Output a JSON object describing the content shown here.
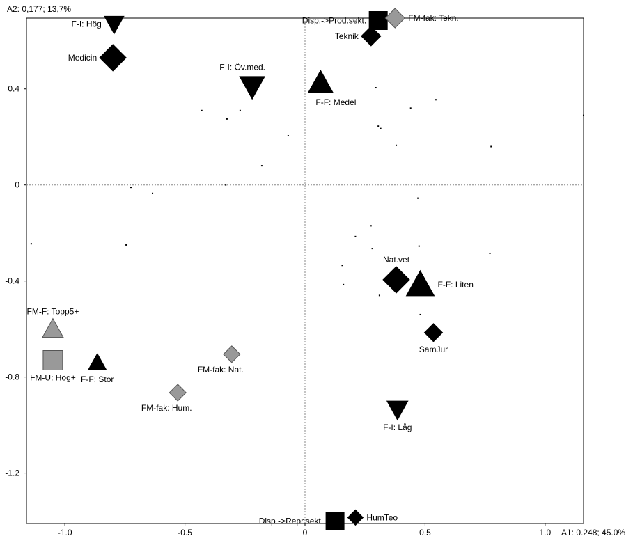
{
  "chart_data": {
    "type": "scatter",
    "y_axis_title": "A2: 0,177; 13,7%",
    "x_axis_title": "A1: 0.248; 45.0%",
    "xlim": [
      -1.16,
      1.16
    ],
    "ylim": [
      -1.41,
      0.695
    ],
    "x_ticks": [
      {
        "value": -1.0,
        "label": "-1.0"
      },
      {
        "value": -0.5,
        "label": "-0.5"
      },
      {
        "value": 0.0,
        "label": "0"
      },
      {
        "value": 0.5,
        "label": "0.5"
      },
      {
        "value": 1.0,
        "label": "1.0"
      }
    ],
    "y_ticks": [
      {
        "value": 0.4,
        "label": "0.4"
      },
      {
        "value": 0.0,
        "label": "0"
      },
      {
        "value": -0.4,
        "label": "-0.4"
      },
      {
        "value": -0.8,
        "label": "-0.8"
      },
      {
        "value": -1.2,
        "label": "-1.2"
      }
    ],
    "colors": {
      "black": "#000000",
      "gray": "#999999",
      "gray_stroke": "#555555",
      "zero_line": "#888888"
    },
    "points": [
      {
        "x": -0.795,
        "y": 0.67,
        "shape": "triangle-down",
        "color": "black",
        "size": 28,
        "label": "F-I: Hög",
        "label_pos": "left"
      },
      {
        "x": -0.8,
        "y": 0.53,
        "shape": "diamond",
        "color": "black",
        "size": 38,
        "label": "Medicin",
        "label_pos": "left"
      },
      {
        "x": -0.22,
        "y": 0.41,
        "shape": "triangle-down",
        "color": "black",
        "size": 36,
        "label": "F-I: Öv.med.",
        "label_pos": "above-left"
      },
      {
        "x": 0.065,
        "y": 0.425,
        "shape": "triangle-up",
        "color": "black",
        "size": 36,
        "label": "F-F: Medel",
        "label_pos": "below-right"
      },
      {
        "x": 0.305,
        "y": 0.685,
        "shape": "square",
        "color": "black",
        "size": 26,
        "label": "Disp.->Prod.sekt.",
        "label_pos": "left"
      },
      {
        "x": 0.375,
        "y": 0.695,
        "shape": "diamond",
        "color": "gray",
        "size": 28,
        "label": "FM-fak: Tekn.",
        "label_pos": "right"
      },
      {
        "x": 0.275,
        "y": 0.62,
        "shape": "diamond",
        "color": "black",
        "size": 28,
        "label": "Teknik",
        "label_pos": "left"
      },
      {
        "x": 0.38,
        "y": -0.395,
        "shape": "diamond",
        "color": "black",
        "size": 38,
        "label": "Nat.vet",
        "label_pos": "above"
      },
      {
        "x": 0.48,
        "y": -0.415,
        "shape": "triangle-up",
        "color": "black",
        "size": 40,
        "label": "F-F: Liten",
        "label_pos": "right"
      },
      {
        "x": 0.535,
        "y": -0.615,
        "shape": "diamond",
        "color": "black",
        "size": 26,
        "label": "SamJur",
        "label_pos": "below"
      },
      {
        "x": 0.385,
        "y": -0.935,
        "shape": "triangle-down",
        "color": "black",
        "size": 30,
        "label": "F-I: Låg",
        "label_pos": "below"
      },
      {
        "x": -1.05,
        "y": -0.6,
        "shape": "triangle-up",
        "color": "gray",
        "size": 30,
        "label": "FM-F: Topp5+",
        "label_pos": "above"
      },
      {
        "x": -1.05,
        "y": -0.73,
        "shape": "square",
        "color": "gray",
        "size": 28,
        "label": "FM-U: Hög+",
        "label_pos": "below"
      },
      {
        "x": -0.865,
        "y": -0.74,
        "shape": "triangle-up",
        "color": "black",
        "size": 26,
        "label": "F-F: Stor",
        "label_pos": "below"
      },
      {
        "x": -0.305,
        "y": -0.705,
        "shape": "diamond",
        "color": "gray",
        "size": 24,
        "label": "FM-fak: Nat.",
        "label_pos": "below-left"
      },
      {
        "x": -0.53,
        "y": -0.865,
        "shape": "diamond",
        "color": "gray",
        "size": 24,
        "label": "FM-fak: Hum.",
        "label_pos": "below-left"
      },
      {
        "x": 0.125,
        "y": -1.4,
        "shape": "square",
        "color": "black",
        "size": 26,
        "label": "Disp.->Repr.sekt.",
        "label_pos": "left"
      },
      {
        "x": 0.21,
        "y": -1.385,
        "shape": "diamond",
        "color": "black",
        "size": 22,
        "label": "HumTeo",
        "label_pos": "right"
      }
    ],
    "small_points": [
      [
        -1.14,
        -0.245
      ],
      [
        -0.745,
        -0.25
      ],
      [
        -0.725,
        -0.01
      ],
      [
        -0.635,
        -0.035
      ],
      [
        -0.43,
        0.31
      ],
      [
        -0.325,
        0.275
      ],
      [
        -0.33,
        0.0
      ],
      [
        -0.27,
        0.31
      ],
      [
        -0.18,
        0.08
      ],
      [
        -0.07,
        0.205
      ],
      [
        0.295,
        0.405
      ],
      [
        0.305,
        0.245
      ],
      [
        0.315,
        0.235
      ],
      [
        0.38,
        0.165
      ],
      [
        0.44,
        0.32
      ],
      [
        0.545,
        0.355
      ],
      [
        0.775,
        0.16
      ],
      [
        1.16,
        0.29
      ],
      [
        0.275,
        -0.17
      ],
      [
        0.21,
        -0.215
      ],
      [
        0.28,
        -0.265
      ],
      [
        0.155,
        -0.335
      ],
      [
        0.475,
        -0.255
      ],
      [
        0.47,
        -0.055
      ],
      [
        0.77,
        -0.285
      ],
      [
        0.16,
        -0.415
      ],
      [
        0.31,
        -0.46
      ],
      [
        0.48,
        -0.54
      ]
    ]
  }
}
